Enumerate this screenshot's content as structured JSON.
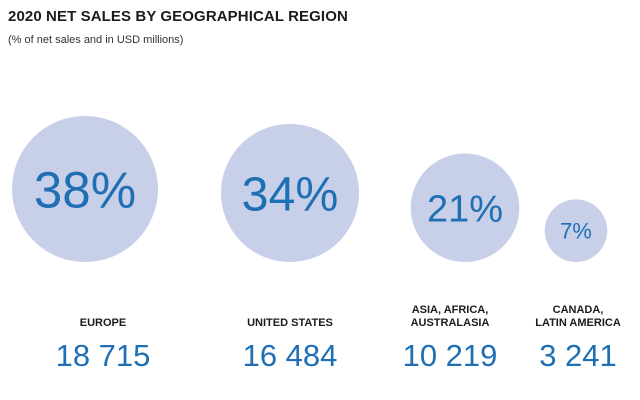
{
  "chart_data": {
    "type": "bubble",
    "title": "2020 NET SALES BY GEOGRAPHICAL REGION",
    "subtitle": "(% of net sales and in USD millions)",
    "colors": {
      "bubble": "#c7d0e8",
      "percent_text": "#1f6fb5",
      "value_text": "#1f6fb5",
      "label_text": "#1c1c1c"
    },
    "categories": [
      {
        "label_lines": [
          "EUROPE"
        ],
        "percent": 38,
        "percent_label": "38%",
        "value": 18715,
        "value_label": "18 715"
      },
      {
        "label_lines": [
          "UNITED STATES"
        ],
        "percent": 34,
        "percent_label": "34%",
        "value": 16484,
        "value_label": "16 484"
      },
      {
        "label_lines": [
          "ASIA, AFRICA,",
          "AUSTRALASIA"
        ],
        "percent": 21,
        "percent_label": "21%",
        "value": 10219,
        "value_label": "10 219"
      },
      {
        "label_lines": [
          "CANADA,",
          "LATIN AMERICA"
        ],
        "percent": 7,
        "percent_label": "7%",
        "value": 3241,
        "value_label": "3 241"
      }
    ]
  }
}
